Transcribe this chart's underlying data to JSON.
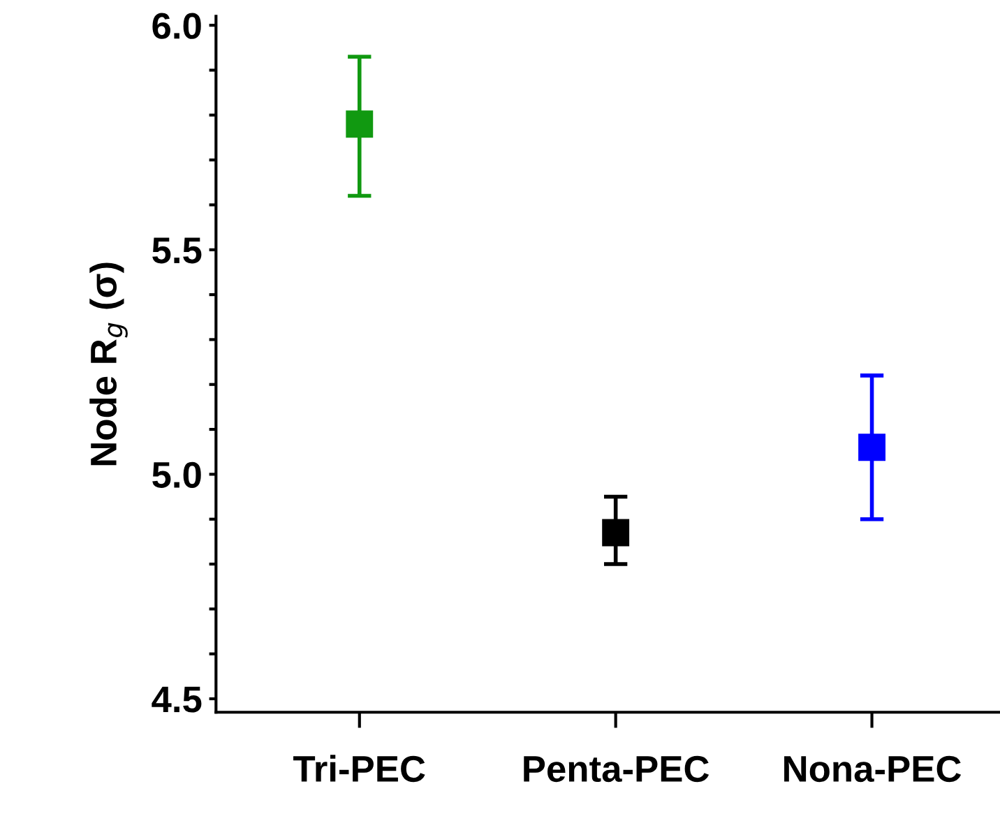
{
  "chart_data": {
    "type": "scatter",
    "ylabel": "Node R$_{g}$ (σ)",
    "categories": [
      "Tri-PEC",
      "Penta-PEC",
      "Nona-PEC"
    ],
    "values": [
      5.78,
      4.87,
      5.06
    ],
    "errors": [
      [
        5.62,
        5.93
      ],
      [
        4.8,
        4.95
      ],
      [
        4.9,
        5.22
      ]
    ],
    "colors": [
      "#119911",
      "#000000",
      "#0000ff"
    ],
    "marker": "square",
    "ylim": [
      4.47,
      6.02
    ],
    "yticks": [
      4.5,
      {
        "value": 4.6,
        "label": null
      },
      {
        "value": 4.7,
        "label": null
      },
      {
        "value": 4.8,
        "label": null
      },
      {
        "value": 4.9,
        "label": null
      },
      {
        "value": 5.0,
        "label": "5.0"
      },
      {
        "value": 5.1,
        "label": null
      },
      {
        "value": 5.2,
        "label": null
      },
      {
        "value": 5.3,
        "label": null
      },
      {
        "value": 5.4,
        "label": null
      },
      5.5,
      {
        "value": 5.6,
        "label": null
      },
      {
        "value": 5.7,
        "label": null
      },
      {
        "value": 5.8,
        "label": null
      },
      {
        "value": 5.9,
        "label": null
      },
      {
        "value": 6.0,
        "label": "6.0"
      }
    ],
    "grid": false,
    "legend": false
  }
}
